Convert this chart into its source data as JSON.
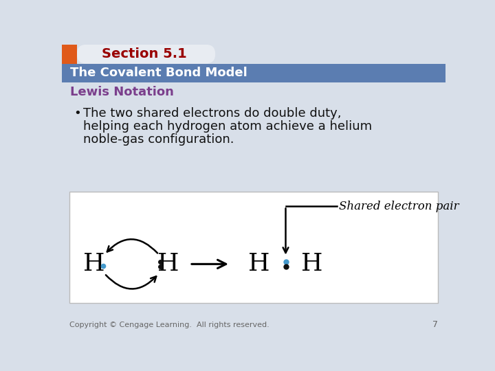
{
  "bg_color": "#d8dfe9",
  "header_square_color": "#e05a1a",
  "header_tab_bg": "#e8ecf2",
  "header_tab_text": "Section 5.1",
  "header_tab_text_color": "#990000",
  "header_bar_color": "#5b7db1",
  "header_bar_text": "The Covalent Bond Model",
  "header_bar_text_color": "#ffffff",
  "section_title": "Lewis Notation",
  "section_title_color": "#7b3f8c",
  "bullet_text_line1": "The two shared electrons do double duty,",
  "bullet_text_line2": "helping each hydrogen atom achieve a helium",
  "bullet_text_line3": "noble-gas configuration.",
  "bullet_color": "#111111",
  "diagram_bg": "#ffffff",
  "diagram_border_color": "#bbbbbb",
  "electron_dot_color_blue": "#4499cc",
  "electron_dot_color_black": "#111111",
  "arrow_color": "#111111",
  "label_text": "Shared electron pair",
  "footer_text": "Copyright © Cengage Learning.  All rights reserved.",
  "footer_number": "7",
  "footer_color": "#666666"
}
